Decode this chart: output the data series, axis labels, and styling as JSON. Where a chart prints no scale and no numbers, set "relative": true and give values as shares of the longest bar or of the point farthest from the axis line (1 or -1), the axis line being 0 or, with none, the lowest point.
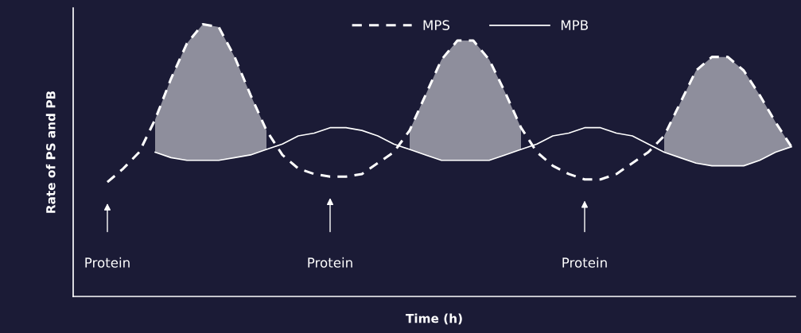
{
  "chart_data": {
    "type": "line",
    "relative": true,
    "xlabel": "Time (h)",
    "ylabel": "Rate of PS and PB",
    "categories": [
      null,
      null,
      null,
      null,
      null,
      null,
      null,
      null,
      null,
      null,
      null,
      null,
      null,
      null,
      null,
      null,
      null,
      null,
      null,
      null,
      null,
      null,
      null,
      null,
      null,
      null,
      null,
      null,
      null,
      null,
      null,
      null,
      null,
      null,
      null,
      null,
      null,
      null,
      null,
      null,
      null,
      null,
      null,
      null
    ],
    "series": [
      {
        "type": "area",
        "color": "#8e8e9c",
        "values": [
          null,
          null,
          null,
          0.65,
          0.8,
          0.93,
          1.0,
          0.99,
          0.88,
          0.74,
          0.61,
          null,
          null,
          null,
          null,
          null,
          null,
          null,
          null,
          0.61,
          0.74,
          0.87,
          0.94,
          0.94,
          0.87,
          0.75,
          0.62,
          null,
          null,
          null,
          null,
          null,
          null,
          null,
          null,
          0.59,
          0.71,
          0.83,
          0.88,
          0.88,
          0.83,
          0.74,
          0.64,
          0.55
        ]
      },
      {
        "name": "MPS",
        "color": "#ffffff",
        "line_style": "dashed",
        "values": [
          0.42,
          0.47,
          0.53,
          0.65,
          0.8,
          0.93,
          1.0,
          0.99,
          0.88,
          0.74,
          0.61,
          0.52,
          0.47,
          0.45,
          0.44,
          0.44,
          0.45,
          0.49,
          0.53,
          0.61,
          0.74,
          0.87,
          0.94,
          0.94,
          0.87,
          0.75,
          0.62,
          0.53,
          0.48,
          0.45,
          0.43,
          0.43,
          0.45,
          0.49,
          0.53,
          0.59,
          0.71,
          0.83,
          0.88,
          0.88,
          0.83,
          0.74,
          0.64,
          0.55
        ]
      },
      {
        "name": "MPB",
        "color": "#ffffff",
        "line_style": "solid",
        "values": [
          null,
          null,
          null,
          0.53,
          0.51,
          0.5,
          0.5,
          0.5,
          0.51,
          0.52,
          0.54,
          0.56,
          0.59,
          0.6,
          0.62,
          0.62,
          0.61,
          0.59,
          0.56,
          0.54,
          0.52,
          0.5,
          0.5,
          0.5,
          0.5,
          0.52,
          0.54,
          0.56,
          0.59,
          0.6,
          0.62,
          0.62,
          0.6,
          0.59,
          0.56,
          0.53,
          0.51,
          0.49,
          0.48,
          0.48,
          0.48,
          0.5,
          0.53,
          0.55
        ]
      }
    ],
    "annotations": [
      "Protein",
      "Protein",
      "Protein"
    ],
    "legend": "top",
    "grid": false,
    "marker": "none"
  }
}
